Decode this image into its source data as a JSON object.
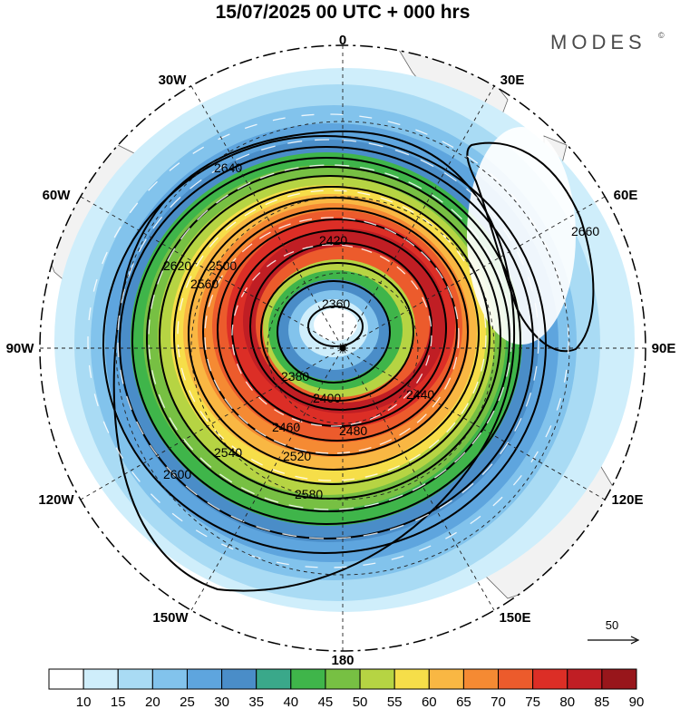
{
  "title": "15/07/2025  00 UTC  + 000 hrs",
  "logo": "MODES",
  "logo_mark": "©",
  "longitude_labels": {
    "n": "0",
    "n30e": "30E",
    "n60e": "60E",
    "e": "90E",
    "s120e": "120E",
    "s150e": "150E",
    "s": "180",
    "s150w": "150W",
    "s120w": "120W",
    "w": "90W",
    "n60w": "60W",
    "n30w": "30W"
  },
  "reference_vector": {
    "value": "50"
  },
  "colorbar": {
    "labels": [
      "10",
      "15",
      "20",
      "25",
      "30",
      "35",
      "40",
      "45",
      "50",
      "55",
      "60",
      "65",
      "70",
      "75",
      "80",
      "85",
      "90"
    ],
    "colors": [
      "#ffffff",
      "#cfeefb",
      "#a9dbf4",
      "#82c3ec",
      "#5ea5de",
      "#4a8dc8",
      "#3aa88a",
      "#3fb54a",
      "#77c043",
      "#b6d443",
      "#f6de49",
      "#f9b743",
      "#f58a33",
      "#ec5b2c",
      "#dc2e26",
      "#c01e24",
      "#98161b"
    ]
  },
  "contour_labels": {
    "c2360": "2360",
    "c2380": "2380",
    "c2400": "2400",
    "c2420": "2420",
    "c2440": "2440",
    "c2460": "2460",
    "c2480": "2480",
    "c2500": "2500",
    "c2520": "2520",
    "c2540": "2540",
    "c2560": "2560",
    "c2580": "2580",
    "c2600": "2600",
    "c2620": "2620",
    "c2640": "2640",
    "c2660": "2660"
  }
}
